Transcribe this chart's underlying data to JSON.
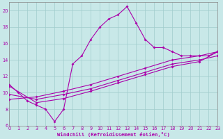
{
  "xlabel": "Windchill (Refroidissement éolien,°C)",
  "bg_color": "#c8e8e8",
  "grid_color": "#a0cccc",
  "line_color": "#aa00aa",
  "spine_color": "#888888",
  "x_min": 0,
  "x_max": 23,
  "y_min": 6,
  "y_max": 21,
  "x_ticks": [
    0,
    1,
    2,
    3,
    4,
    5,
    6,
    7,
    8,
    9,
    10,
    11,
    12,
    13,
    14,
    15,
    16,
    17,
    18,
    19,
    20,
    21,
    22,
    23
  ],
  "y_ticks": [
    6,
    8,
    10,
    12,
    14,
    16,
    18,
    20
  ],
  "line1_x": [
    0,
    1,
    2,
    3,
    4,
    5,
    6,
    7,
    8,
    9,
    10,
    11,
    12,
    13,
    14,
    15,
    16,
    17,
    18,
    19,
    20,
    21,
    22,
    23
  ],
  "line1_y": [
    11,
    10,
    9,
    8.5,
    8,
    6.5,
    8,
    13.5,
    14.5,
    16.5,
    18,
    19,
    19.5,
    20.5,
    18.5,
    16.5,
    15.5,
    15.5,
    15,
    14.5,
    14.5,
    14.5,
    14.5,
    15
  ],
  "line2_x": [
    0,
    3,
    6,
    9,
    12,
    15,
    18,
    21,
    23
  ],
  "line2_y": [
    9.2,
    9.5,
    10.2,
    11.0,
    12.0,
    13.0,
    14.0,
    14.5,
    15.0
  ],
  "line3_x": [
    0,
    3,
    6,
    9,
    12,
    15,
    18,
    21,
    23
  ],
  "line3_y": [
    9.8,
    9.2,
    9.8,
    10.5,
    11.5,
    12.5,
    13.5,
    14.0,
    14.5
  ],
  "line4_x": [
    0,
    3,
    6,
    9,
    12,
    15,
    18,
    21,
    23
  ],
  "line4_y": [
    10.8,
    8.8,
    9.3,
    10.2,
    11.2,
    12.2,
    13.2,
    13.8,
    15.0
  ]
}
